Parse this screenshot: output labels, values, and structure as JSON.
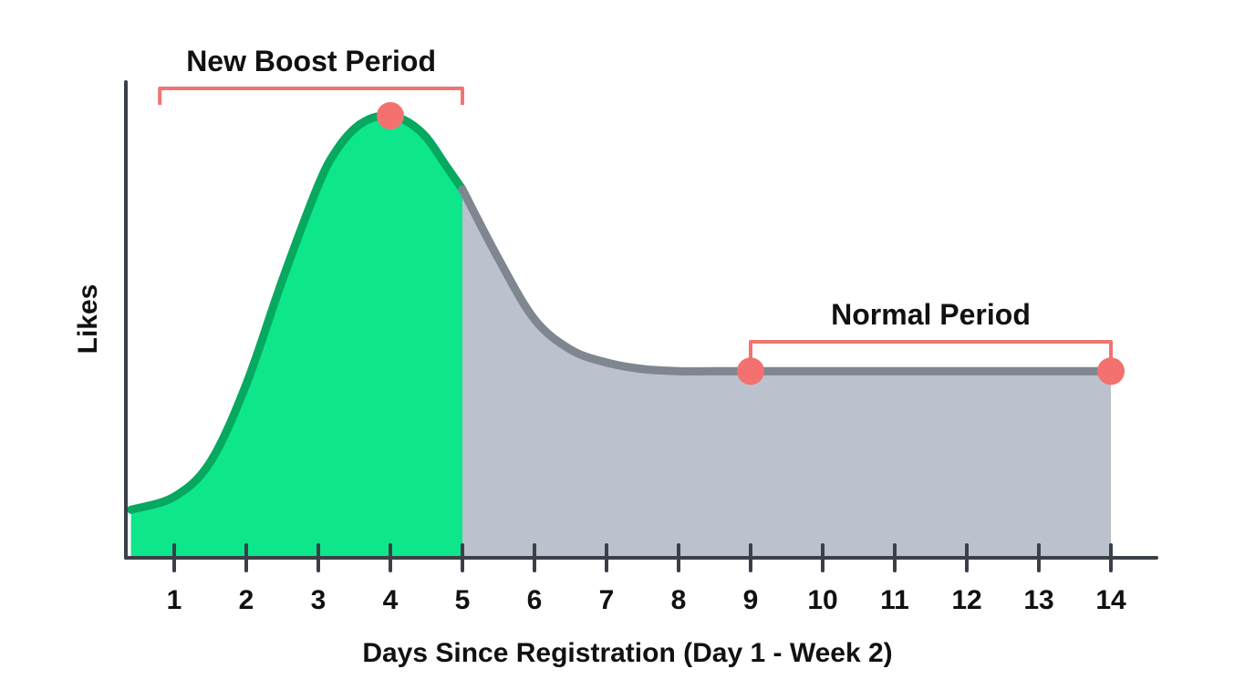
{
  "chart_data": {
    "type": "area",
    "title": "",
    "xlabel": "Days Since Registration (Day 1 - Week 2)",
    "ylabel": "Likes",
    "x_ticks": [
      1,
      2,
      3,
      4,
      5,
      6,
      7,
      8,
      9,
      10,
      11,
      12,
      13,
      14
    ],
    "xlim": [
      0.4,
      15.0
    ],
    "ylim": [
      0,
      100
    ],
    "grid": false,
    "y_tick_labels": false,
    "series": [
      {
        "x": [
          0.4,
          1,
          1.5,
          2,
          2.5,
          3,
          3.25,
          3.5,
          3.75,
          4,
          4.25,
          4.5,
          4.75,
          5,
          5.5,
          6,
          6.5,
          7,
          7.5,
          8,
          8.5,
          9,
          10,
          11,
          12,
          13,
          14
        ],
        "y": [
          9,
          12,
          20,
          38,
          62,
          84,
          92,
          97,
          99.5,
          100,
          98.5,
          95,
          89,
          83,
          67,
          53,
          46,
          43,
          41.5,
          41,
          41,
          41,
          41,
          41,
          41,
          41,
          41
        ]
      }
    ],
    "shaded_regions": [
      {
        "from": 0.4,
        "to": 5,
        "color": "#0ee68c",
        "stroke": "#07a85f"
      },
      {
        "from": 5,
        "to": 14,
        "color": "#bbc2cd",
        "stroke": "#7e8690"
      }
    ],
    "annotations": [
      {
        "label": "New Boost Period",
        "from": 0.8,
        "to": 5,
        "color": "#ef7571"
      },
      {
        "label": "Normal Period",
        "from": 9,
        "to": 14,
        "color": "#ef7571"
      }
    ],
    "highlight_points": [
      {
        "x": 4,
        "y": 100,
        "color": "#f3716f"
      },
      {
        "x": 9,
        "y": 41,
        "color": "#f3716f"
      },
      {
        "x": 14,
        "y": 41,
        "color": "#f3716f"
      }
    ],
    "colors": {
      "axis": "#3b4048",
      "text": "#111111"
    }
  }
}
